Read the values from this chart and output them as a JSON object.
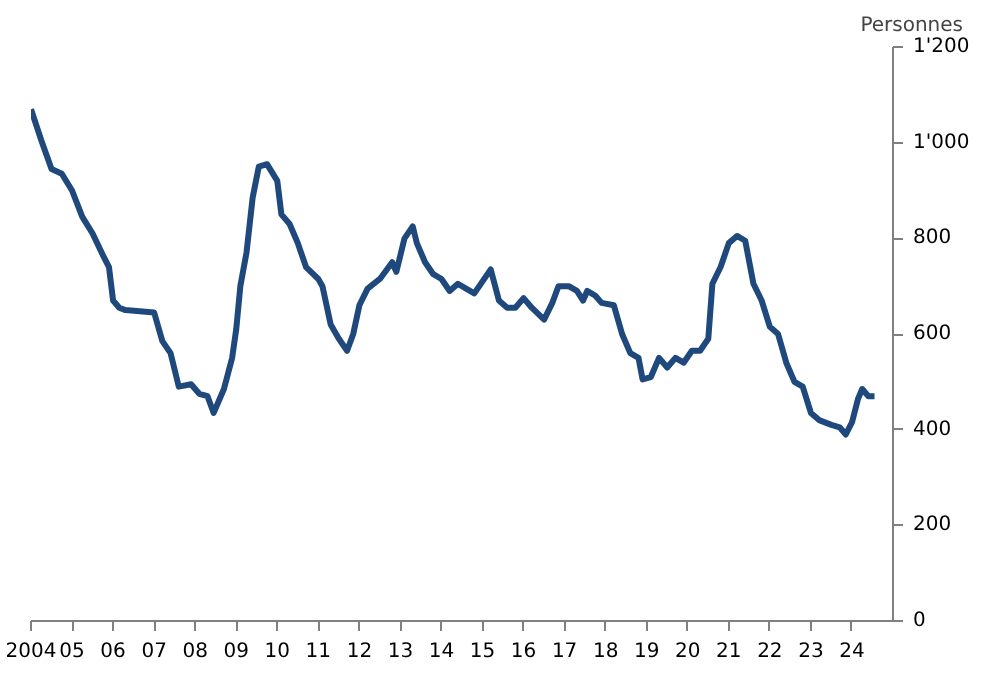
{
  "chart_data": {
    "type": "line",
    "ylabel": "Personnes",
    "xlim": [
      2004,
      2025
    ],
    "ylim": [
      0,
      1200
    ],
    "xticks": [
      {
        "value": 2004,
        "label": "2004"
      },
      {
        "value": 2005,
        "label": "05"
      },
      {
        "value": 2006,
        "label": "06"
      },
      {
        "value": 2007,
        "label": "07"
      },
      {
        "value": 2008,
        "label": "08"
      },
      {
        "value": 2009,
        "label": "09"
      },
      {
        "value": 2010,
        "label": "10"
      },
      {
        "value": 2011,
        "label": "11"
      },
      {
        "value": 2012,
        "label": "12"
      },
      {
        "value": 2013,
        "label": "13"
      },
      {
        "value": 2014,
        "label": "14"
      },
      {
        "value": 2015,
        "label": "15"
      },
      {
        "value": 2016,
        "label": "16"
      },
      {
        "value": 2017,
        "label": "17"
      },
      {
        "value": 2018,
        "label": "18"
      },
      {
        "value": 2019,
        "label": "19"
      },
      {
        "value": 2020,
        "label": "20"
      },
      {
        "value": 2021,
        "label": "21"
      },
      {
        "value": 2022,
        "label": "22"
      },
      {
        "value": 2023,
        "label": "23"
      },
      {
        "value": 2024,
        "label": "24"
      }
    ],
    "yticks": [
      0,
      200,
      400,
      600,
      800,
      {
        "value": 1000,
        "label": "1'000"
      },
      {
        "value": 1200,
        "label": "1'200"
      }
    ],
    "grid": false,
    "marker": "none",
    "line_style": "solid",
    "x": [
      2004.0,
      2004.25,
      2004.5,
      2004.75,
      2005.0,
      2005.25,
      2005.5,
      2005.75,
      2005.9,
      2006.0,
      2006.15,
      2006.3,
      2007.0,
      2007.2,
      2007.4,
      2007.6,
      2007.9,
      2008.1,
      2008.3,
      2008.45,
      2008.7,
      2008.9,
      2009.0,
      2009.1,
      2009.25,
      2009.4,
      2009.55,
      2009.75,
      2010.0,
      2010.1,
      2010.3,
      2010.5,
      2010.7,
      2011.0,
      2011.1,
      2011.3,
      2011.5,
      2011.7,
      2011.85,
      2012.0,
      2012.2,
      2012.5,
      2012.8,
      2012.9,
      2013.1,
      2013.3,
      2013.4,
      2013.6,
      2013.8,
      2014.0,
      2014.2,
      2014.4,
      2014.6,
      2014.8,
      2015.0,
      2015.2,
      2015.4,
      2015.6,
      2015.8,
      2016.0,
      2016.2,
      2016.5,
      2016.7,
      2016.85,
      2017.1,
      2017.3,
      2017.45,
      2017.55,
      2017.75,
      2017.9,
      2018.2,
      2018.4,
      2018.6,
      2018.8,
      2018.9,
      2019.1,
      2019.3,
      2019.5,
      2019.7,
      2019.9,
      2020.1,
      2020.3,
      2020.5,
      2020.6,
      2020.8,
      2021.0,
      2021.2,
      2021.4,
      2021.6,
      2021.8,
      2022.0,
      2022.2,
      2022.4,
      2022.6,
      2022.8,
      2023.0,
      2023.2,
      2023.5,
      2023.7,
      2023.85,
      2024.0,
      2024.15,
      2024.25,
      2024.4,
      2024.55
    ],
    "series": [
      {
        "color": "#1f497d",
        "values": [
          1070,
          1005,
          945,
          935,
          900,
          845,
          810,
          765,
          740,
          670,
          655,
          650,
          645,
          585,
          560,
          490,
          495,
          475,
          470,
          435,
          485,
          550,
          610,
          700,
          770,
          885,
          950,
          955,
          920,
          850,
          830,
          790,
          740,
          715,
          700,
          620,
          590,
          565,
          600,
          660,
          695,
          715,
          750,
          730,
          800,
          825,
          790,
          750,
          725,
          715,
          690,
          705,
          695,
          685,
          710,
          735,
          670,
          655,
          655,
          675,
          655,
          630,
          665,
          700,
          700,
          690,
          670,
          690,
          680,
          665,
          660,
          600,
          560,
          550,
          505,
          510,
          550,
          530,
          550,
          540,
          565,
          565,
          590,
          705,
          740,
          790,
          805,
          795,
          705,
          670,
          615,
          600,
          540,
          500,
          490,
          435,
          420,
          410,
          405,
          390,
          415,
          465,
          485,
          470,
          470
        ]
      }
    ]
  }
}
